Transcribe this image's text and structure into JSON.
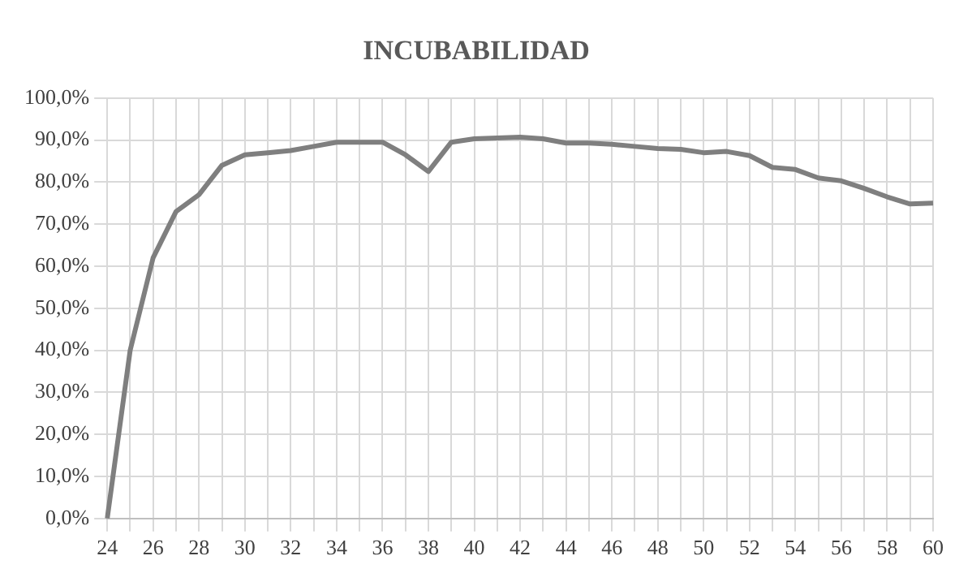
{
  "chart_data": {
    "type": "line",
    "title": "INCUBABILIDAD",
    "categories": [
      "24",
      null,
      "26",
      null,
      "28",
      null,
      "30",
      null,
      "32",
      null,
      "34",
      null,
      "36",
      null,
      "38",
      null,
      "40",
      null,
      "42",
      null,
      "44",
      null,
      "46",
      null,
      "48",
      null,
      "50",
      null,
      "52",
      null,
      "54",
      null,
      "56",
      null,
      "58",
      null,
      "60"
    ],
    "series": [
      {
        "color": "#7f7f7f",
        "values": [
          0,
          40,
          62,
          73,
          77,
          84,
          86.5,
          87,
          87.5,
          88.5,
          89.5,
          89.5,
          89.5,
          86.5,
          82.5,
          89.5,
          90.3,
          90.5,
          90.7,
          90.3,
          89.3,
          89.3,
          89,
          88.5,
          88,
          87.8,
          87,
          87.3,
          86.3,
          83.5,
          83,
          81,
          80.3,
          78.5,
          76.5,
          74.8,
          75
        ]
      }
    ],
    "ylim": [
      0,
      100
    ],
    "yticks": [
      {
        "value": 0,
        "label": "0,0%"
      },
      {
        "value": 10,
        "label": "10,0%"
      },
      {
        "value": 20,
        "label": "20,0%"
      },
      {
        "value": 30,
        "label": "30,0%"
      },
      {
        "value": 40,
        "label": "40,0%"
      },
      {
        "value": 50,
        "label": "50,0%"
      },
      {
        "value": 60,
        "label": "60,0%"
      },
      {
        "value": 70,
        "label": "70,0%"
      },
      {
        "value": 80,
        "label": "80,0%"
      },
      {
        "value": 90,
        "label": "90,0%"
      },
      {
        "value": 100,
        "label": "100,0%"
      }
    ],
    "grid": true,
    "legend": false,
    "marker": "none",
    "line_style": "solid"
  }
}
